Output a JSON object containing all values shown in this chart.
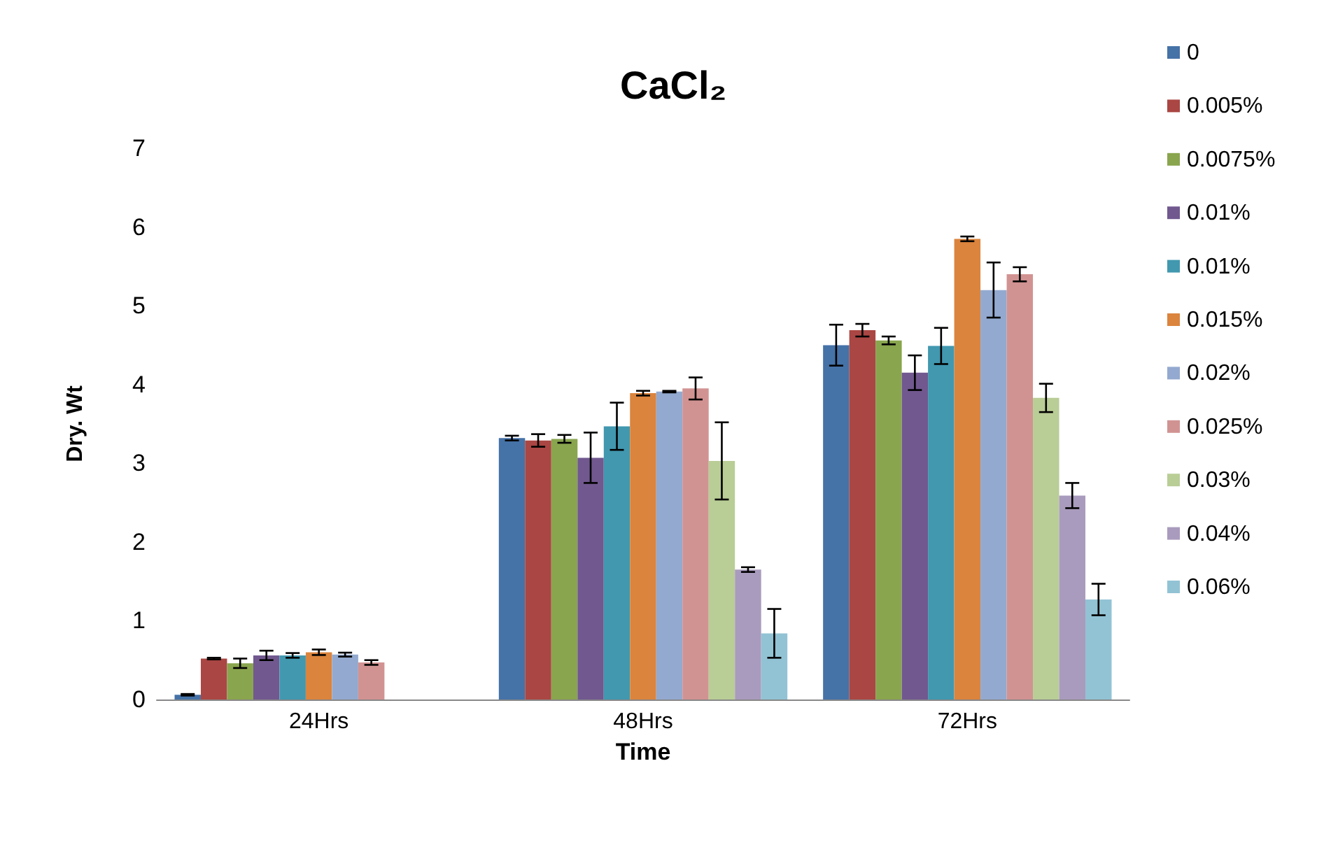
{
  "chart_data": {
    "type": "bar",
    "title": "CaCl₂",
    "xlabel": "Time",
    "ylabel": "Dry. Wt",
    "categories": [
      "24Hrs",
      "48Hrs",
      "72Hrs"
    ],
    "ylim": [
      0,
      7
    ],
    "yticks": [
      0,
      1,
      2,
      3,
      4,
      5,
      6,
      7
    ],
    "grid": false,
    "legend": "right",
    "series": [
      {
        "name": "0",
        "color": "#4572a7",
        "values": [
          0.06,
          3.32,
          4.5
        ],
        "errors": [
          0.01,
          0.03,
          0.26
        ]
      },
      {
        "name": "0.005%",
        "color": "#aa4643",
        "values": [
          0.52,
          3.29,
          4.69
        ],
        "errors": [
          0.01,
          0.08,
          0.08
        ]
      },
      {
        "name": "0.0075%",
        "color": "#89a54e",
        "values": [
          0.46,
          3.31,
          4.56
        ],
        "errors": [
          0.06,
          0.05,
          0.05
        ]
      },
      {
        "name": "0.01%",
        "color": "#71588f",
        "values": [
          0.56,
          3.07,
          4.15
        ],
        "errors": [
          0.06,
          0.32,
          0.22
        ]
      },
      {
        "name": "0.01%",
        "color": "#4198af",
        "values": [
          0.56,
          3.47,
          4.49
        ],
        "errors": [
          0.03,
          0.3,
          0.23
        ]
      },
      {
        "name": "0.015%",
        "color": "#db843d",
        "values": [
          0.6,
          3.89,
          5.85
        ],
        "errors": [
          0.035,
          0.03,
          0.03
        ]
      },
      {
        "name": "0.02%",
        "color": "#93a9cf",
        "values": [
          0.57,
          3.91,
          5.2
        ],
        "errors": [
          0.025,
          0.01,
          0.35
        ]
      },
      {
        "name": "0.025%",
        "color": "#d19392",
        "values": [
          0.47,
          3.95,
          5.4
        ],
        "errors": [
          0.03,
          0.14,
          0.09
        ]
      },
      {
        "name": "0.03%",
        "color": "#b9cd96",
        "values": [
          null,
          3.03,
          3.83
        ],
        "errors": [
          null,
          0.49,
          0.18
        ]
      },
      {
        "name": "0.04%",
        "color": "#a99bbd",
        "values": [
          null,
          1.65,
          2.59
        ],
        "errors": [
          null,
          0.03,
          0.16
        ]
      },
      {
        "name": "0.06%",
        "color": "#92c3d4",
        "values": [
          null,
          0.84,
          1.27
        ],
        "errors": [
          null,
          0.31,
          0.2
        ]
      }
    ]
  }
}
